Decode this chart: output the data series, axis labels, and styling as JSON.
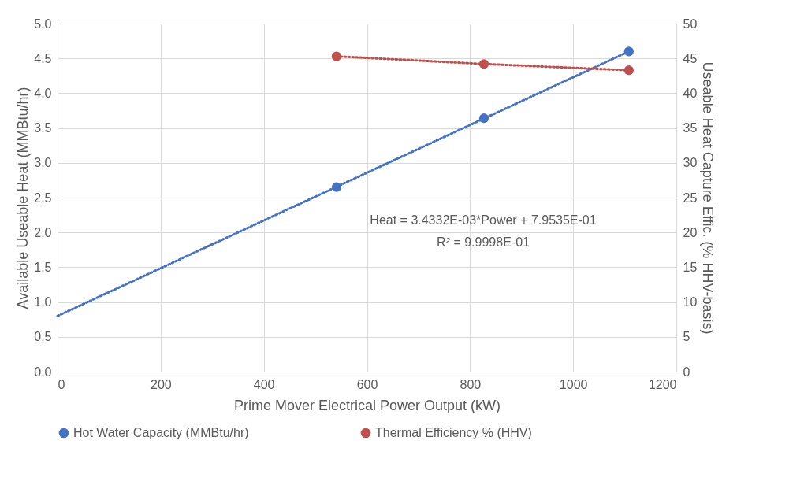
{
  "chart_data": {
    "type": "scatter",
    "xlabel": "Prime Mover Electrical Power Output (kW)",
    "ylabel": "Available Useable Heat (MMBtu/hr)",
    "y2label": "Useable Heat Capture Effic. (% HHV-basis)",
    "x": [
      541,
      827,
      1108
    ],
    "series": [
      {
        "name": "Hot Water Capacity (MMBtu/hr)",
        "color": "#4472c4",
        "values": [
          2.65,
          3.64,
          4.6
        ],
        "axis": "y"
      },
      {
        "name": "Thermal Efficiency % (HHV)",
        "color": "#c0504d",
        "values": [
          45.3,
          44.2,
          43.3
        ],
        "axis": "y2"
      },
      {
        "type": "line",
        "color": "#4472c4",
        "x": [
          0,
          1108
        ],
        "values": [
          0.8,
          4.6
        ],
        "axis": "y",
        "line_style": "dotted",
        "marker": "none"
      },
      {
        "type": "line",
        "color": "#c0504d",
        "x": [
          541,
          827,
          1108
        ],
        "values": [
          45.3,
          44.2,
          43.3
        ],
        "axis": "y2",
        "line_style": "dotted",
        "marker": "none"
      }
    ],
    "xlim": [
      0,
      1200
    ],
    "xticks": [
      0,
      200,
      400,
      600,
      800,
      1000,
      1200
    ],
    "ylim": [
      0,
      5
    ],
    "yticks": [
      {
        "value": 0,
        "label": "0.0"
      },
      {
        "value": 0.5,
        "label": "0.5"
      },
      {
        "value": 1,
        "label": "1.0"
      },
      {
        "value": 1.5,
        "label": "1.5"
      },
      {
        "value": 2,
        "label": "2.0"
      },
      {
        "value": 2.5,
        "label": "2.5"
      },
      {
        "value": 3,
        "label": "3.0"
      },
      {
        "value": 3.5,
        "label": "3.5"
      },
      {
        "value": 4,
        "label": "4.0"
      },
      {
        "value": 4.5,
        "label": "4.5"
      },
      {
        "value": 5,
        "label": "5.0"
      }
    ],
    "y2lim": [
      0,
      50
    ],
    "y2ticks": [
      0,
      5,
      10,
      15,
      20,
      25,
      30,
      35,
      40,
      45,
      50
    ],
    "annotations": [
      "Heat = 3.4332E-03*Power + 7.9535E-01",
      "R² = 9.9998E-01"
    ],
    "grid": true,
    "legend": "bottom",
    "marker": "circle"
  }
}
